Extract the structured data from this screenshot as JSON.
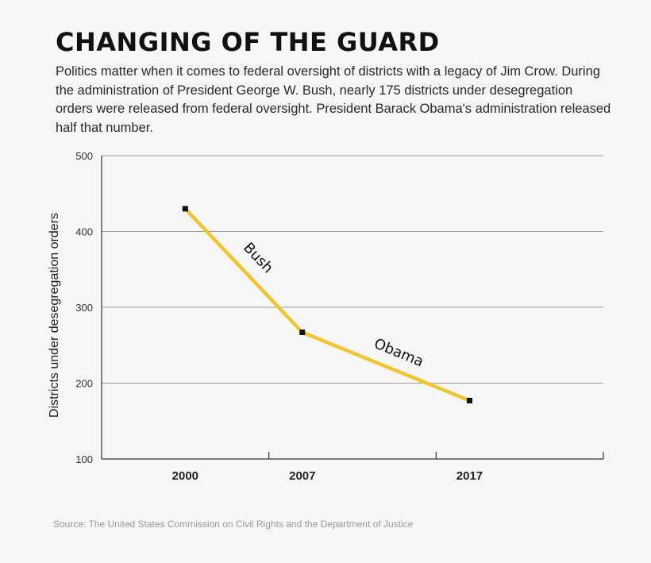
{
  "header": {
    "title": "CHANGING OF THE GUARD",
    "subtitle": "Politics matter when it comes to federal oversight of districts with a legacy of Jim Crow. During the administration of President George W. Bush, nearly 175 districts under desegregation orders were released from federal oversight. President Barack Obama's administration released half that number."
  },
  "chart_data": {
    "type": "line",
    "title": "CHANGING OF THE GUARD",
    "xlabel": "",
    "ylabel": "Districts under desegregation orders",
    "x_tick_labels": [
      "2000",
      "2007",
      "2017"
    ],
    "y_ticks": [
      100,
      200,
      300,
      400,
      500
    ],
    "ylim": [
      100,
      500
    ],
    "grid": true,
    "series": [
      {
        "x": [
          2000,
          2007,
          2017
        ],
        "values": [
          430,
          267,
          177
        ]
      }
    ],
    "annotations": [
      {
        "text": "Bush",
        "between": [
          "2000",
          "2007"
        ]
      },
      {
        "text": "Obama",
        "between": [
          "2007",
          "2017"
        ]
      }
    ],
    "colors": {
      "line": "#f4c430",
      "marker": "#111111",
      "grid": "#9a9a9a",
      "axis": "#333333"
    }
  },
  "footer": {
    "source": "Source: The United States Commission on Civil Rights and the Department of Justice"
  }
}
